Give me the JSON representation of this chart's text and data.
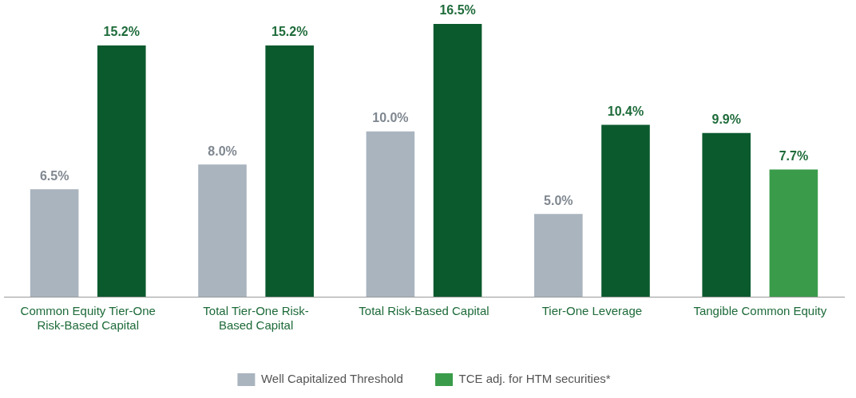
{
  "chart_data": {
    "type": "bar",
    "categories": [
      "Common Equity Tier-One Risk-Based Capital",
      "Total Tier-One Risk-Based Capital",
      "Total Risk-Based Capital",
      "Tier-One Leverage",
      "Tangible Common Equity"
    ],
    "series": [
      {
        "name": "Well Capitalized Threshold",
        "color": "#a9b4bf",
        "values": [
          6.5,
          8.0,
          10.0,
          5.0,
          null
        ],
        "value_labels": [
          "6.5%",
          "8.0%",
          "10.0%",
          "5.0%",
          null
        ]
      },
      {
        "color": "#0b5a2e",
        "values": [
          15.2,
          15.2,
          16.5,
          10.4,
          9.9
        ],
        "value_labels": [
          "15.2%",
          "15.2%",
          "16.5%",
          "10.4%",
          "9.9%"
        ]
      },
      {
        "name": "TCE adj. for HTM securities*",
        "color": "#3a9c4a",
        "values": [
          null,
          null,
          null,
          null,
          7.7
        ],
        "value_labels": [
          null,
          null,
          null,
          null,
          "7.7%"
        ]
      }
    ],
    "ylim": [
      0,
      16.5
    ],
    "tick_labels": "x",
    "legend": "bottom"
  }
}
